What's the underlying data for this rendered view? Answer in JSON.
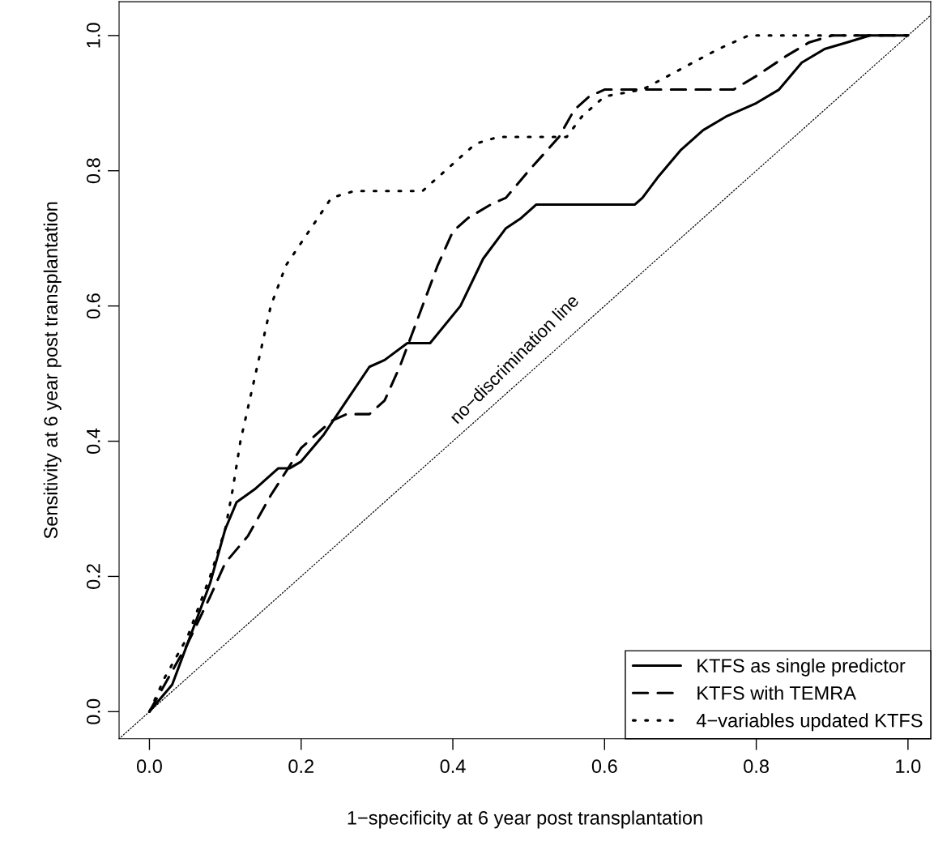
{
  "chart_data": {
    "type": "line",
    "xlabel": "1−specificity at 6 year post transplantation",
    "ylabel": "Sensitivity at 6 year post transplantation",
    "xlim": [
      -0.04,
      1.03
    ],
    "ylim": [
      -0.04,
      1.05
    ],
    "xticks": [
      {
        "value": 0,
        "label": "0.0"
      },
      0.2,
      0.4,
      0.6,
      0.8,
      {
        "value": 1,
        "label": "1.0"
      }
    ],
    "yticks": [
      {
        "value": 0,
        "label": "0.0"
      },
      0.2,
      0.4,
      0.6,
      0.8,
      {
        "value": 1,
        "label": "1.0"
      }
    ],
    "grid": false,
    "legend": "bottom right",
    "series": [
      {
        "name": "KTFS as single predictor",
        "color": "#000000",
        "line_style": "solid",
        "x": [
          0,
          0.03,
          0.05,
          0.08,
          0.1,
          0.115,
          0.14,
          0.17,
          0.185,
          0.2,
          0.23,
          0.26,
          0.29,
          0.31,
          0.34,
          0.37,
          0.41,
          0.44,
          0.47,
          0.49,
          0.51,
          0.64,
          0.65,
          0.67,
          0.7,
          0.73,
          0.76,
          0.8,
          0.83,
          0.86,
          0.89,
          0.92,
          0.95,
          1.0
        ],
        "values": [
          0,
          0.04,
          0.1,
          0.19,
          0.27,
          0.31,
          0.33,
          0.36,
          0.36,
          0.37,
          0.41,
          0.46,
          0.51,
          0.52,
          0.545,
          0.545,
          0.6,
          0.67,
          0.715,
          0.73,
          0.75,
          0.75,
          0.76,
          0.79,
          0.83,
          0.86,
          0.88,
          0.9,
          0.92,
          0.96,
          0.98,
          0.99,
          1.0,
          1.0
        ]
      },
      {
        "name": "KTFS with TEMRA",
        "color": "#000000",
        "line_style": "dashed",
        "x": [
          0,
          0.02,
          0.05,
          0.08,
          0.1,
          0.13,
          0.16,
          0.2,
          0.24,
          0.26,
          0.29,
          0.31,
          0.33,
          0.35,
          0.38,
          0.4,
          0.42,
          0.45,
          0.47,
          0.5,
          0.54,
          0.56,
          0.58,
          0.6,
          0.77,
          0.8,
          0.84,
          0.87,
          0.9,
          1.0
        ],
        "values": [
          0,
          0.04,
          0.1,
          0.17,
          0.22,
          0.26,
          0.32,
          0.39,
          0.43,
          0.44,
          0.44,
          0.46,
          0.51,
          0.57,
          0.66,
          0.71,
          0.73,
          0.75,
          0.76,
          0.8,
          0.85,
          0.89,
          0.91,
          0.92,
          0.92,
          0.94,
          0.97,
          0.99,
          1.0,
          1.0
        ]
      },
      {
        "name": "4−variables updated KTFS",
        "color": "#000000",
        "line_style": "dotted",
        "x": [
          0,
          0.02,
          0.05,
          0.08,
          0.1,
          0.11,
          0.12,
          0.14,
          0.16,
          0.18,
          0.21,
          0.24,
          0.27,
          0.36,
          0.39,
          0.43,
          0.46,
          0.55,
          0.57,
          0.6,
          0.65,
          0.7,
          0.75,
          0.79,
          1.0
        ],
        "values": [
          0,
          0.05,
          0.11,
          0.2,
          0.27,
          0.33,
          0.4,
          0.5,
          0.6,
          0.66,
          0.71,
          0.76,
          0.77,
          0.77,
          0.8,
          0.84,
          0.85,
          0.85,
          0.88,
          0.91,
          0.92,
          0.95,
          0.98,
          1.0,
          1.0
        ]
      },
      {
        "color": "#000000",
        "line_style": "dotted",
        "x": [
          -0.04,
          1.03
        ],
        "values": [
          -0.04,
          1.03
        ]
      }
    ],
    "annotations": [
      {
        "text": "no−discrimination line",
        "x": 0.5,
        "y": 0.5
      }
    ]
  }
}
